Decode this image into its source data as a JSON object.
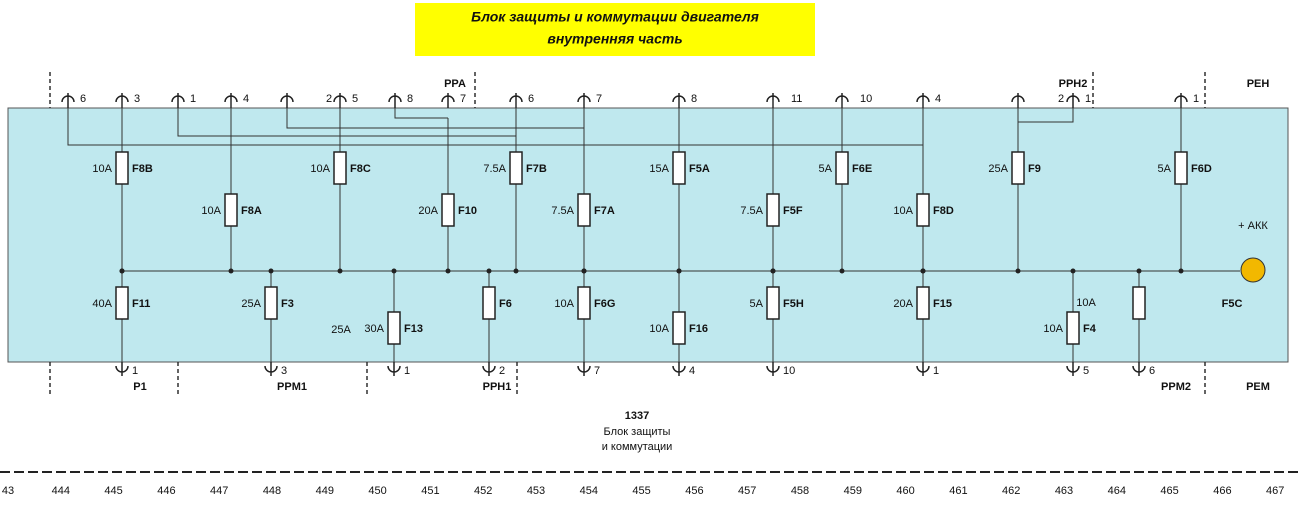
{
  "title": {
    "line1": "Блок защиты и коммутации двигателя",
    "line2": "внутренняя часть"
  },
  "top_pins": [
    "6",
    "3",
    "1",
    "4",
    "2",
    "5",
    "8",
    "7",
    "6",
    "7",
    "8",
    "11",
    "10",
    "4",
    "2",
    "1",
    "1"
  ],
  "bottom_pins": [
    "1",
    "3",
    "1",
    "2",
    "7",
    "4",
    "10",
    "1",
    "5",
    "6"
  ],
  "connectors_top": [
    "PPA",
    "PPH2",
    "PEH"
  ],
  "connectors_bottom": [
    "P1",
    "PPM1",
    "PPH1",
    "PPM2",
    "PEM"
  ],
  "fuses": [
    {
      "name": "F8B",
      "rating": "10A"
    },
    {
      "name": "F8A",
      "rating": "10A"
    },
    {
      "name": "F8C",
      "rating": "10A"
    },
    {
      "name": "F10",
      "rating": "20A"
    },
    {
      "name": "F7B",
      "rating": "7.5A"
    },
    {
      "name": "F7A",
      "rating": "7.5A"
    },
    {
      "name": "F5A",
      "rating": "15A"
    },
    {
      "name": "F5F",
      "rating": "7.5A"
    },
    {
      "name": "F6E",
      "rating": "5A"
    },
    {
      "name": "F8D",
      "rating": "10A"
    },
    {
      "name": "F9",
      "rating": "25A"
    },
    {
      "name": "F6D",
      "rating": "5A"
    },
    {
      "name": "F11",
      "rating": "40A"
    },
    {
      "name": "F3",
      "rating": "25A"
    },
    {
      "name": "F13",
      "rating": "30A"
    },
    {
      "name": "F6"
    },
    {
      "name": "F6G",
      "rating": "10A"
    },
    {
      "name": "F16",
      "rating": "10A"
    },
    {
      "name": "F5H",
      "rating": "5A"
    },
    {
      "name": "F15",
      "rating": "20A"
    },
    {
      "name": "F4",
      "rating": "10A"
    },
    {}
  ],
  "extra_labels": [
    "25A",
    "10A"
  ],
  "battery": {
    "name": "F5C",
    "label": "+ АКК"
  },
  "caption": [
    "1337",
    "Блок защиты",
    "и коммутации"
  ],
  "ruler": [
    "43",
    "444",
    "445",
    "446",
    "447",
    "448",
    "449",
    "450",
    "451",
    "452",
    "453",
    "454",
    "455",
    "456",
    "457",
    "458",
    "459",
    "460",
    "461",
    "462",
    "463",
    "464",
    "465",
    "466",
    "467"
  ]
}
